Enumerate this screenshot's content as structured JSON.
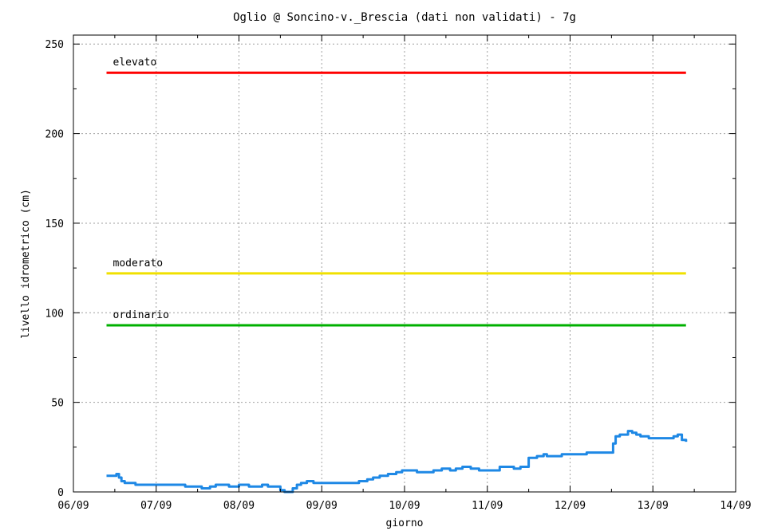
{
  "chart_data": {
    "type": "line",
    "title": "Oglio @  Soncino-v._Brescia (dati non validati) - 7g",
    "xlabel": "giorno",
    "ylabel": "livello idrometrico (cm)",
    "xlim": [
      0,
      8
    ],
    "ylim": [
      0,
      255
    ],
    "grid": true,
    "x_tick_labels": [
      "06/09",
      "07/09",
      "08/09",
      "09/09",
      "10/09",
      "11/09",
      "12/09",
      "13/09",
      "14/09"
    ],
    "y_ticks": [
      0,
      50,
      100,
      150,
      200,
      250
    ],
    "y_tick_labels": [
      "0",
      "50",
      "100",
      "150",
      "200",
      "250"
    ],
    "thresholds": [
      {
        "name": "elevato",
        "value": 234,
        "x_start": 0.4,
        "x_end": 7.4,
        "color": "#ff0000"
      },
      {
        "name": "moderato",
        "value": 122,
        "x_start": 0.4,
        "x_end": 7.4,
        "color": "#f0e000"
      },
      {
        "name": "ordinario",
        "value": 93,
        "x_start": 0.4,
        "x_end": 7.4,
        "color": "#00b000"
      }
    ],
    "series": [
      {
        "name": "",
        "color": "#1e88e5",
        "x": [
          0.4,
          0.45,
          0.5,
          0.52,
          0.55,
          0.58,
          0.62,
          0.68,
          0.75,
          0.82,
          0.9,
          0.97,
          1.05,
          1.15,
          1.25,
          1.35,
          1.45,
          1.55,
          1.65,
          1.72,
          1.8,
          1.88,
          1.95,
          2.0,
          2.05,
          2.12,
          2.2,
          2.28,
          2.35,
          2.42,
          2.5,
          2.55,
          2.6,
          2.65,
          2.7,
          2.75,
          2.82,
          2.9,
          2.97,
          3.05,
          3.15,
          3.25,
          3.35,
          3.45,
          3.55,
          3.62,
          3.7,
          3.8,
          3.9,
          3.97,
          4.05,
          4.15,
          4.25,
          4.35,
          4.45,
          4.55,
          4.62,
          4.7,
          4.8,
          4.9,
          4.97,
          5.05,
          5.15,
          5.25,
          5.32,
          5.4,
          5.5,
          5.6,
          5.68,
          5.72,
          5.75,
          5.8,
          5.85,
          5.9,
          6.0,
          6.1,
          6.2,
          6.3,
          6.4,
          6.45,
          6.5,
          6.52,
          6.55,
          6.6,
          6.65,
          6.7,
          6.75,
          6.8,
          6.85,
          6.9,
          6.95,
          7.0,
          7.05,
          7.1,
          7.15,
          7.2,
          7.25,
          7.3,
          7.35,
          7.4
        ],
        "values": [
          9,
          9,
          9,
          10,
          8,
          6,
          5,
          5,
          4,
          4,
          4,
          4,
          4,
          4,
          4,
          3,
          3,
          2,
          3,
          4,
          4,
          3,
          3,
          4,
          4,
          3,
          3,
          4,
          3,
          3,
          1,
          0,
          0,
          2,
          4,
          5,
          6,
          5,
          5,
          5,
          5,
          5,
          5,
          6,
          7,
          8,
          9,
          10,
          11,
          12,
          12,
          11,
          11,
          12,
          13,
          12,
          13,
          14,
          13,
          12,
          12,
          12,
          14,
          14,
          13,
          14,
          19,
          20,
          21,
          20,
          20,
          20,
          20,
          21,
          21,
          21,
          22,
          22,
          22,
          22,
          22,
          27,
          31,
          32,
          32,
          34,
          33,
          32,
          31,
          31,
          30,
          30,
          30,
          30,
          30,
          30,
          31,
          32,
          29,
          28
        ]
      }
    ]
  }
}
